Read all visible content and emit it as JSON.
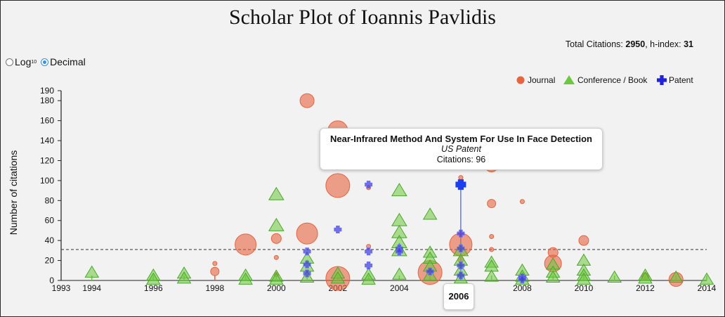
{
  "page": {
    "title": "Scholar Plot of Ioannis Pavlidis",
    "total_citations_label": "Total Citations: ",
    "total_citations": "2950",
    "h_index_label": ", h-index: ",
    "h_index": "31"
  },
  "scale_toggle": {
    "log_label": "Log",
    "log_sub": "10",
    "decimal_label": "Decimal",
    "selected": "Decimal"
  },
  "tooltip": {
    "title": "Near-Infrared Method And System For Use In Face Detection",
    "venue": "US Patent",
    "citations": "Citations: 96"
  },
  "hover_year": "2006",
  "colors": {
    "journal": "#e8643f",
    "conference": "#6cc93d",
    "patent": "#3b3bdb",
    "patent_hover": "#1a3ff0"
  },
  "chart_data": {
    "type": "scatter",
    "ylabel": "Number of citations",
    "xlim": [
      1993,
      2014
    ],
    "ylim": [
      0,
      190
    ],
    "x_ticks": [
      1993,
      1994,
      1996,
      1998,
      2000,
      2002,
      2004,
      2006,
      2008,
      2010,
      2012,
      2014
    ],
    "y_ticks": [
      0,
      20,
      40,
      60,
      80,
      100,
      120,
      140,
      160,
      180,
      190
    ],
    "h_index_line": 31,
    "legend": {
      "position": "top-right",
      "entries": [
        {
          "name": "Journal",
          "marker": "circle"
        },
        {
          "name": "Conference / Book",
          "marker": "triangle"
        },
        {
          "name": "Patent",
          "marker": "cross"
        }
      ]
    },
    "series": [
      {
        "name": "Journal",
        "marker": "circle",
        "points": [
          {
            "x": 1998,
            "y": 9,
            "size": 6
          },
          {
            "x": 1998,
            "y": 17,
            "size": 3
          },
          {
            "x": 1999,
            "y": 36,
            "size": 15
          },
          {
            "x": 2000,
            "y": 42,
            "size": 7
          },
          {
            "x": 2000,
            "y": 23,
            "size": 3
          },
          {
            "x": 2000,
            "y": 6,
            "size": 3
          },
          {
            "x": 2001,
            "y": 180,
            "size": 10
          },
          {
            "x": 2001,
            "y": 47,
            "size": 15
          },
          {
            "x": 2002,
            "y": 150,
            "size": 14
          },
          {
            "x": 2002,
            "y": 95,
            "size": 17
          },
          {
            "x": 2002,
            "y": 2,
            "size": 17
          },
          {
            "x": 2003,
            "y": 93,
            "size": 3
          },
          {
            "x": 2003,
            "y": 34,
            "size": 3
          },
          {
            "x": 2005,
            "y": 8,
            "size": 17
          },
          {
            "x": 2006,
            "y": 103,
            "size": 3
          },
          {
            "x": 2006,
            "y": 36,
            "size": 16
          },
          {
            "x": 2006,
            "y": 21,
            "size": 4
          },
          {
            "x": 2007,
            "y": 115,
            "size": 9
          },
          {
            "x": 2007,
            "y": 77,
            "size": 6
          },
          {
            "x": 2007,
            "y": 44,
            "size": 3
          },
          {
            "x": 2007,
            "y": 31,
            "size": 3
          },
          {
            "x": 2008,
            "y": 79,
            "size": 3
          },
          {
            "x": 2009,
            "y": 28,
            "size": 7
          },
          {
            "x": 2009,
            "y": 17,
            "size": 12
          },
          {
            "x": 2010,
            "y": 40,
            "size": 7
          },
          {
            "x": 2012,
            "y": 4,
            "size": 5
          },
          {
            "x": 2013,
            "y": 1,
            "size": 10
          }
        ]
      },
      {
        "name": "Conference / Book",
        "marker": "triangle",
        "points": [
          {
            "x": 1994,
            "y": 8,
            "size": 9
          },
          {
            "x": 1996,
            "y": 5,
            "size": 9
          },
          {
            "x": 1996,
            "y": 1,
            "size": 9
          },
          {
            "x": 1997,
            "y": 7,
            "size": 9
          },
          {
            "x": 1997,
            "y": 2,
            "size": 9
          },
          {
            "x": 1999,
            "y": 5,
            "size": 9
          },
          {
            "x": 1999,
            "y": 1,
            "size": 9
          },
          {
            "x": 2000,
            "y": 86,
            "size": 10
          },
          {
            "x": 2000,
            "y": 55,
            "size": 10
          },
          {
            "x": 2000,
            "y": 4,
            "size": 9
          },
          {
            "x": 2000,
            "y": 1,
            "size": 9
          },
          {
            "x": 2001,
            "y": 22,
            "size": 9
          },
          {
            "x": 2001,
            "y": 14,
            "size": 9
          },
          {
            "x": 2001,
            "y": 3,
            "size": 9
          },
          {
            "x": 2002,
            "y": 7,
            "size": 9
          },
          {
            "x": 2002,
            "y": 2,
            "size": 9
          },
          {
            "x": 2003,
            "y": 6,
            "size": 9
          },
          {
            "x": 2003,
            "y": 1,
            "size": 9
          },
          {
            "x": 2004,
            "y": 90,
            "size": 10
          },
          {
            "x": 2004,
            "y": 60,
            "size": 10
          },
          {
            "x": 2004,
            "y": 48,
            "size": 10
          },
          {
            "x": 2004,
            "y": 38,
            "size": 10
          },
          {
            "x": 2004,
            "y": 30,
            "size": 10
          },
          {
            "x": 2004,
            "y": 6,
            "size": 9
          },
          {
            "x": 2005,
            "y": 66,
            "size": 9
          },
          {
            "x": 2005,
            "y": 28,
            "size": 9
          },
          {
            "x": 2005,
            "y": 22,
            "size": 9
          },
          {
            "x": 2005,
            "y": 14,
            "size": 9
          },
          {
            "x": 2005,
            "y": 5,
            "size": 9
          },
          {
            "x": 2006,
            "y": 30,
            "size": 10
          },
          {
            "x": 2006,
            "y": 20,
            "size": 9
          },
          {
            "x": 2006,
            "y": 10,
            "size": 9
          },
          {
            "x": 2006,
            "y": 2,
            "size": 9
          },
          {
            "x": 2007,
            "y": 18,
            "size": 9
          },
          {
            "x": 2007,
            "y": 14,
            "size": 9
          },
          {
            "x": 2007,
            "y": 4,
            "size": 9
          },
          {
            "x": 2008,
            "y": 10,
            "size": 9
          },
          {
            "x": 2008,
            "y": 4,
            "size": 9
          },
          {
            "x": 2008,
            "y": 1,
            "size": 9
          },
          {
            "x": 2009,
            "y": 16,
            "size": 9
          },
          {
            "x": 2009,
            "y": 8,
            "size": 9
          },
          {
            "x": 2009,
            "y": 3,
            "size": 9
          },
          {
            "x": 2010,
            "y": 20,
            "size": 9
          },
          {
            "x": 2010,
            "y": 10,
            "size": 9
          },
          {
            "x": 2010,
            "y": 5,
            "size": 9
          },
          {
            "x": 2010,
            "y": 1,
            "size": 9
          },
          {
            "x": 2011,
            "y": 3,
            "size": 9
          },
          {
            "x": 2012,
            "y": 5,
            "size": 9
          },
          {
            "x": 2012,
            "y": 2,
            "size": 9
          },
          {
            "x": 2013,
            "y": 3,
            "size": 9
          },
          {
            "x": 2014,
            "y": 1,
            "size": 9
          }
        ]
      },
      {
        "name": "Patent",
        "marker": "cross",
        "points": [
          {
            "x": 2001,
            "y": 29
          },
          {
            "x": 2001,
            "y": 16
          },
          {
            "x": 2001,
            "y": 7
          },
          {
            "x": 2002,
            "y": 51
          },
          {
            "x": 2003,
            "y": 96
          },
          {
            "x": 2003,
            "y": 29
          },
          {
            "x": 2003,
            "y": 15
          },
          {
            "x": 2004,
            "y": 32
          },
          {
            "x": 2004,
            "y": 29
          },
          {
            "x": 2005,
            "y": 9
          },
          {
            "x": 2006,
            "y": 96,
            "highlight": true
          },
          {
            "x": 2006,
            "y": 47
          },
          {
            "x": 2006,
            "y": 32
          },
          {
            "x": 2006,
            "y": 15
          },
          {
            "x": 2006,
            "y": 5
          },
          {
            "x": 2008,
            "y": 3
          },
          {
            "x": 2008,
            "y": 1
          }
        ]
      }
    ]
  }
}
